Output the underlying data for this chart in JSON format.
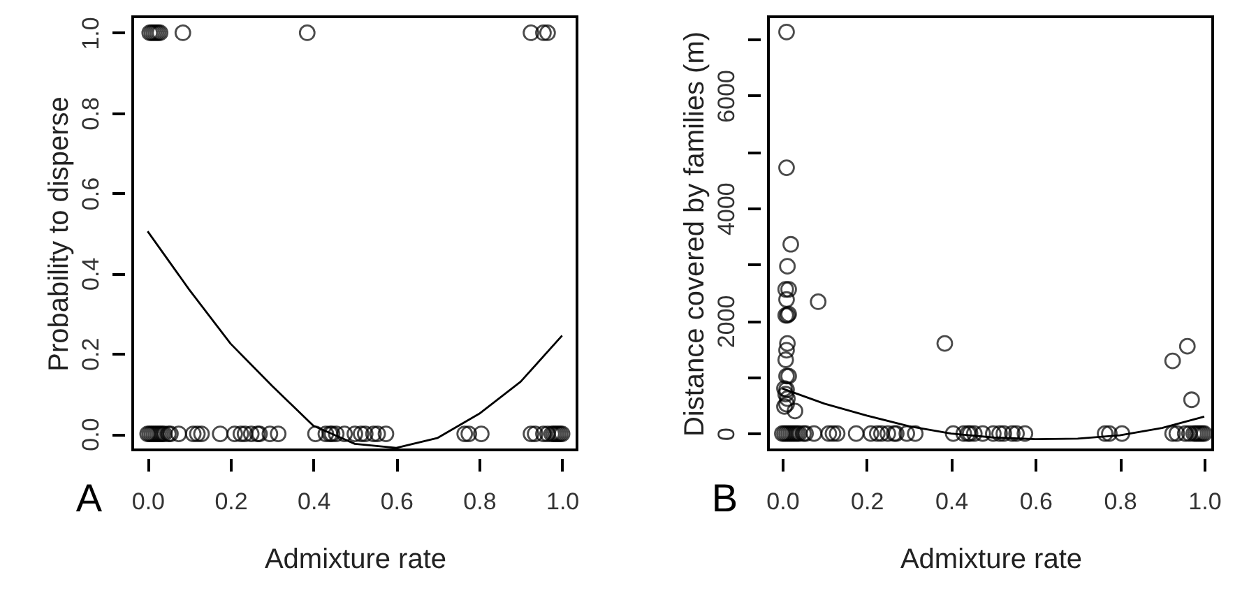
{
  "chart_data": [
    {
      "type": "scatter",
      "xlabel": "Admixture rate",
      "ylabel": "Probability to disperse",
      "annotations": [
        "A"
      ],
      "grid": false,
      "xlim": [
        -0.036,
        1.036
      ],
      "ylim": [
        -0.04,
        1.04
      ],
      "xticks": [
        {
          "value": 0,
          "label": "0.0"
        },
        {
          "value": 0.2,
          "label": "0.2"
        },
        {
          "value": 0.4,
          "label": "0.4"
        },
        {
          "value": 0.6,
          "label": "0.6"
        },
        {
          "value": 0.8,
          "label": "0.8"
        },
        {
          "value": 1,
          "label": "1.0"
        }
      ],
      "yticks": [
        {
          "value": 0,
          "label": "0.0"
        },
        {
          "value": 0.2,
          "label": "0.2"
        },
        {
          "value": 0.4,
          "label": "0.4"
        },
        {
          "value": 0.6,
          "label": "0.6"
        },
        {
          "value": 0.8,
          "label": "0.8"
        },
        {
          "value": 1,
          "label": "1.0"
        }
      ],
      "series": [
        {
          "marker": "circle",
          "color": "#000000",
          "x": [
            0.005,
            0.01,
            0.015,
            0.02,
            0.025,
            0.03,
            0.085,
            0.385,
            0.925,
            0.955,
            0.965,
            0.0,
            0.005,
            0.01,
            0.015,
            0.02,
            0.025,
            0.03,
            0.035,
            0.04,
            0.05,
            0.055,
            0.075,
            0.11,
            0.12,
            0.13,
            0.175,
            0.21,
            0.225,
            0.235,
            0.25,
            0.265,
            0.27,
            0.295,
            0.315,
            0.405,
            0.43,
            0.44,
            0.445,
            0.455,
            0.475,
            0.5,
            0.515,
            0.525,
            0.545,
            0.555,
            0.575,
            0.765,
            0.775,
            0.805,
            0.925,
            0.935,
            0.955,
            0.965,
            0.975,
            0.98,
            0.985,
            0.99,
            0.995,
            1.0
          ],
          "values": [
            1,
            1,
            1,
            1,
            1,
            1,
            1,
            1,
            1,
            1,
            1,
            0,
            0,
            0,
            0,
            0,
            0,
            0,
            0,
            0,
            0,
            0,
            0,
            0,
            0,
            0,
            0,
            0,
            0,
            0,
            0,
            0,
            0,
            0,
            0,
            0,
            0,
            0,
            0,
            0,
            0,
            0,
            0,
            0,
            0,
            0,
            0,
            0,
            0,
            0,
            0,
            0,
            0,
            0,
            0,
            0,
            0,
            0,
            0,
            0
          ]
        },
        {
          "type": "line",
          "color": "#000000",
          "x": [
            0,
            0.1,
            0.2,
            0.3,
            0.4,
            0.5,
            0.6,
            0.7,
            0.8,
            0.9,
            1.0
          ],
          "values": [
            0.505,
            0.36,
            0.225,
            0.12,
            0.02,
            -0.025,
            -0.035,
            -0.01,
            0.05,
            0.13,
            0.245
          ]
        }
      ]
    },
    {
      "type": "scatter",
      "xlabel": "Admixture rate",
      "ylabel": "Distance covered by families (m)",
      "annotations": [
        "B"
      ],
      "grid": false,
      "xlim": [
        -0.033,
        1.02
      ],
      "ylim": [
        -290,
        7400
      ],
      "xticks": [
        {
          "value": 0,
          "label": "0.0"
        },
        {
          "value": 0.2,
          "label": "0.2"
        },
        {
          "value": 0.4,
          "label": "0.4"
        },
        {
          "value": 0.6,
          "label": "0.6"
        },
        {
          "value": 0.8,
          "label": "0.8"
        },
        {
          "value": 1,
          "label": "1.0"
        }
      ],
      "yticks": [
        0,
        {
          "value": 1000,
          "label": null
        },
        2000,
        {
          "value": 3000,
          "label": null
        },
        4000,
        {
          "value": 5000,
          "label": null
        },
        6000,
        {
          "value": 7000,
          "label": null
        }
      ],
      "series": [
        {
          "marker": "circle",
          "color": "#000000",
          "x": [
            0.01,
            0.01,
            0.02,
            0.012,
            0.008,
            0.015,
            0.01,
            0.012,
            0.008,
            0.015,
            0.085,
            0.385,
            0.012,
            0.01,
            0.008,
            0.01,
            0.015,
            0.005,
            0.01,
            0.008,
            0.012,
            0.005,
            0.01,
            0.03,
            0.925,
            0.96,
            0.97,
            0.0,
            0.005,
            0.01,
            0.015,
            0.02,
            0.025,
            0.03,
            0.035,
            0.04,
            0.05,
            0.055,
            0.075,
            0.11,
            0.12,
            0.13,
            0.175,
            0.21,
            0.225,
            0.235,
            0.25,
            0.265,
            0.27,
            0.295,
            0.315,
            0.405,
            0.43,
            0.44,
            0.445,
            0.455,
            0.475,
            0.5,
            0.515,
            0.525,
            0.545,
            0.555,
            0.575,
            0.765,
            0.775,
            0.805,
            0.925,
            0.935,
            0.955,
            0.965,
            0.975,
            0.98,
            0.985,
            0.99,
            0.995,
            1.0
          ],
          "values": [
            7130,
            4720,
            3360,
            2970,
            2560,
            2560,
            2380,
            2100,
            2100,
            2120,
            2340,
            1600,
            1600,
            1480,
            1310,
            1020,
            1020,
            800,
            780,
            700,
            620,
            480,
            520,
            400,
            1290,
            1550,
            600,
            0,
            0,
            0,
            0,
            0,
            0,
            0,
            0,
            0,
            0,
            0,
            0,
            0,
            0,
            0,
            0,
            0,
            0,
            0,
            0,
            0,
            0,
            0,
            0,
            0,
            0,
            0,
            0,
            0,
            0,
            0,
            0,
            0,
            0,
            0,
            0,
            0,
            0,
            0,
            0,
            0,
            0,
            0,
            0,
            0,
            0,
            0,
            0,
            0
          ]
        },
        {
          "type": "line",
          "color": "#000000",
          "x": [
            0,
            0.1,
            0.2,
            0.3,
            0.4,
            0.5,
            0.6,
            0.7,
            0.8,
            0.9,
            1.0
          ],
          "values": [
            800,
            530,
            320,
            130,
            0,
            -70,
            -100,
            -90,
            -30,
            100,
            300
          ]
        }
      ]
    }
  ]
}
